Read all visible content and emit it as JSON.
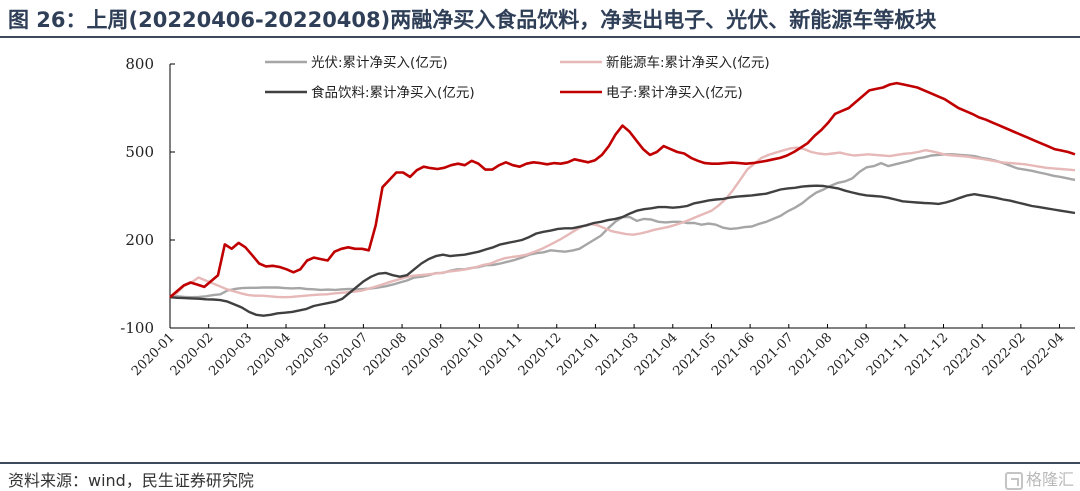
{
  "header": {
    "title": "图 26：上周(20220406-20220408)两融净买入食品饮料，净卖出电子、光伏、新能源车等板块"
  },
  "footer": {
    "source": "资料来源：wind，民生证券研究院",
    "watermark": "格隆汇"
  },
  "chart_data": {
    "type": "line",
    "ylim": [
      -100,
      800
    ],
    "yticks": [
      "800",
      "500",
      "200",
      "-100"
    ],
    "ytick_values": [
      800,
      500,
      200,
      -100
    ],
    "x_labels": [
      "2020-01",
      "2020-02",
      "2020-03",
      "2020-04",
      "2020-05",
      "2020-07",
      "2020-08",
      "2020-09",
      "2020-10",
      "2020-11",
      "2020-12",
      "2021-01",
      "2021-03",
      "2021-04",
      "2021-05",
      "2021-06",
      "2021-07",
      "2021-08",
      "2021-09",
      "2021-11",
      "2021-12",
      "2022-01",
      "2022-02",
      "2022-04"
    ],
    "grid": false,
    "legend_position": "top",
    "series": [
      {
        "name": "光伏:累计净买入(亿元)",
        "color": "#a6a6a6",
        "values": [
          5,
          8,
          6,
          5,
          6,
          8,
          12,
          15,
          28,
          33,
          36,
          37,
          37,
          38,
          38,
          38,
          36,
          35,
          36,
          33,
          32,
          30,
          31,
          30,
          32,
          33,
          32,
          33,
          35,
          38,
          42,
          48,
          55,
          62,
          72,
          75,
          80,
          87,
          88,
          95,
          100,
          100,
          105,
          108,
          114,
          115,
          120,
          126,
          132,
          140,
          150,
          155,
          158,
          165,
          162,
          160,
          164,
          170,
          185,
          200,
          215,
          240,
          262,
          278,
          278,
          265,
          272,
          270,
          262,
          260,
          262,
          262,
          258,
          258,
          252,
          256,
          252,
          242,
          238,
          240,
          244,
          246,
          255,
          262,
          272,
          282,
          298,
          310,
          325,
          345,
          362,
          372,
          385,
          395,
          400,
          410,
          432,
          448,
          452,
          462,
          452,
          458,
          464,
          470,
          478,
          482,
          488,
          490,
          492,
          492,
          490,
          488,
          486,
          480,
          476,
          470,
          462,
          453,
          444,
          440,
          436,
          430,
          425,
          419,
          415,
          410,
          405
        ]
      },
      {
        "name": "新能源车:累计净买入(亿元)",
        "color": "#e6b8b7",
        "values": [
          5,
          20,
          45,
          55,
          72,
          62,
          52,
          42,
          32,
          25,
          18,
          12,
          10,
          10,
          8,
          6,
          5,
          6,
          8,
          10,
          12,
          14,
          15,
          18,
          20,
          22,
          24,
          28,
          35,
          42,
          50,
          58,
          65,
          72,
          78,
          80,
          82,
          85,
          88,
          92,
          95,
          98,
          102,
          108,
          115,
          120,
          130,
          138,
          142,
          145,
          150,
          158,
          168,
          180,
          192,
          205,
          220,
          235,
          248,
          255,
          250,
          240,
          230,
          225,
          220,
          218,
          222,
          228,
          235,
          240,
          245,
          252,
          260,
          270,
          280,
          290,
          300,
          318,
          340,
          370,
          405,
          440,
          460,
          480,
          490,
          498,
          505,
          512,
          515,
          510,
          500,
          495,
          492,
          495,
          498,
          492,
          488,
          490,
          492,
          490,
          488,
          486,
          490,
          494,
          496,
          500,
          506,
          502,
          496,
          490,
          488,
          486,
          484,
          480,
          476,
          472,
          468,
          464,
          462,
          460,
          458,
          454,
          450,
          446,
          444,
          442,
          440,
          438
        ]
      },
      {
        "name": "食品饮料:累计净买入(亿元)",
        "color": "#404040",
        "values": [
          5,
          3,
          2,
          1,
          0,
          -2,
          -3,
          -5,
          -10,
          -20,
          -30,
          -45,
          -55,
          -58,
          -55,
          -50,
          -48,
          -45,
          -40,
          -35,
          -25,
          -20,
          -15,
          -10,
          0,
          20,
          40,
          60,
          75,
          85,
          88,
          80,
          75,
          80,
          100,
          120,
          135,
          145,
          150,
          145,
          148,
          150,
          155,
          160,
          168,
          175,
          185,
          190,
          195,
          200,
          210,
          222,
          228,
          232,
          238,
          240,
          240,
          245,
          250,
          258,
          262,
          268,
          272,
          278,
          290,
          300,
          305,
          308,
          312,
          312,
          310,
          312,
          316,
          325,
          330,
          335,
          338,
          340,
          345,
          348,
          350,
          352,
          355,
          358,
          365,
          372,
          376,
          378,
          382,
          384,
          385,
          384,
          380,
          376,
          368,
          362,
          356,
          352,
          350,
          348,
          344,
          338,
          332,
          330,
          328,
          326,
          325,
          323,
          328,
          335,
          344,
          352,
          356,
          352,
          348,
          344,
          338,
          334,
          328,
          322,
          316,
          312,
          308,
          304,
          300,
          296,
          292
        ]
      },
      {
        "name": "电子:累计净买入(亿元)",
        "color": "#c00000",
        "values": [
          5,
          25,
          45,
          55,
          48,
          40,
          60,
          80,
          185,
          170,
          190,
          175,
          148,
          120,
          110,
          112,
          108,
          100,
          90,
          100,
          130,
          140,
          135,
          130,
          160,
          170,
          175,
          170,
          170,
          165,
          250,
          380,
          405,
          430,
          430,
          415,
          438,
          450,
          445,
          442,
          446,
          455,
          460,
          455,
          470,
          460,
          440,
          440,
          455,
          465,
          455,
          450,
          460,
          465,
          462,
          458,
          462,
          460,
          465,
          475,
          470,
          465,
          472,
          490,
          520,
          560,
          590,
          570,
          540,
          510,
          490,
          500,
          520,
          510,
          500,
          495,
          480,
          470,
          462,
          460,
          460,
          462,
          464,
          462,
          460,
          462,
          466,
          470,
          475,
          480,
          488,
          500,
          515,
          530,
          555,
          575,
          600,
          630,
          640,
          650,
          670,
          690,
          710,
          715,
          720,
          730,
          735,
          730,
          725,
          720,
          710,
          700,
          690,
          680,
          665,
          650,
          640,
          630,
          618,
          610,
          600,
          590,
          580,
          570,
          560,
          550,
          540,
          530,
          520,
          510,
          505,
          500,
          492
        ]
      }
    ]
  }
}
